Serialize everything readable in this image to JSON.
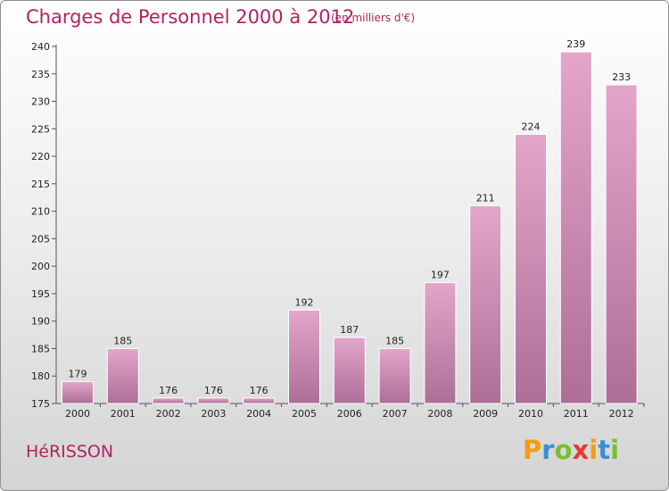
{
  "header": {
    "title": "Charges de Personnel 2000 à 2012",
    "subtitle": "(en milliers d'€)"
  },
  "footer": {
    "commune": "HéRISSON",
    "logo_text": "Proxiti"
  },
  "colors": {
    "title": "#b2235e",
    "bar_top": "#e4a5ca",
    "bar_bottom": "#ad6f96",
    "axis": "#555555"
  },
  "chart_data": {
    "type": "bar",
    "categories": [
      "2000",
      "2001",
      "2002",
      "2003",
      "2004",
      "2005",
      "2006",
      "2007",
      "2008",
      "2009",
      "2010",
      "2011",
      "2012"
    ],
    "values": [
      179,
      185,
      176,
      176,
      176,
      192,
      187,
      185,
      197,
      211,
      224,
      239,
      233
    ],
    "ylim": [
      175,
      240
    ],
    "yticks": [
      175,
      180,
      185,
      190,
      195,
      200,
      205,
      210,
      215,
      220,
      225,
      230,
      235,
      240
    ],
    "grid": false,
    "xlabel": "",
    "ylabel": ""
  }
}
